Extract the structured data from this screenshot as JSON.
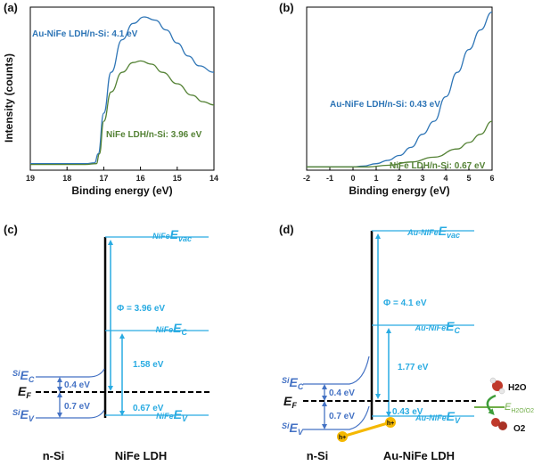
{
  "panels": {
    "a": "(a)",
    "b": "(b)",
    "c": "(c)",
    "d": "(d)"
  },
  "colors": {
    "blue_curve": "#2e75b6",
    "green_curve": "#548235",
    "cyan": "#29abe2",
    "si_blue": "#4472c4",
    "green_light": "#70ad47",
    "hole": "#f5b800",
    "molecule_red": "#c0392b"
  },
  "chart_data": [
    {
      "type": "line",
      "title": "",
      "xlabel": "Binding energy (eV)",
      "ylabel": "Intensity (counts)",
      "xlim": [
        19,
        14
      ],
      "x_reversed": true,
      "xticks": [
        19,
        18,
        17,
        16,
        15,
        14
      ],
      "series": [
        {
          "name": "Au-NiFe LDH/n-Si: 4.1 eV",
          "color": "#2e75b6",
          "points": [
            [
              19.0,
              0.04
            ],
            [
              17.5,
              0.04
            ],
            [
              17.25,
              0.045
            ],
            [
              17.15,
              0.1
            ],
            [
              17.0,
              0.35
            ],
            [
              16.8,
              0.6
            ],
            [
              16.5,
              0.8
            ],
            [
              16.2,
              0.9
            ],
            [
              15.9,
              0.94
            ],
            [
              15.6,
              0.92
            ],
            [
              15.3,
              0.86
            ],
            [
              15.0,
              0.78
            ],
            [
              14.7,
              0.7
            ],
            [
              14.4,
              0.64
            ],
            [
              14.0,
              0.6
            ]
          ]
        },
        {
          "name": "NiFe LDH/n-Si: 3.96 eV",
          "color": "#548235",
          "points": [
            [
              19.0,
              0.035
            ],
            [
              17.5,
              0.035
            ],
            [
              17.2,
              0.04
            ],
            [
              17.12,
              0.1
            ],
            [
              17.0,
              0.3
            ],
            [
              16.8,
              0.48
            ],
            [
              16.5,
              0.6
            ],
            [
              16.2,
              0.66
            ],
            [
              16.0,
              0.67
            ],
            [
              15.7,
              0.65
            ],
            [
              15.4,
              0.6
            ],
            [
              15.0,
              0.53
            ],
            [
              14.6,
              0.46
            ],
            [
              14.3,
              0.42
            ],
            [
              14.0,
              0.4
            ]
          ]
        }
      ]
    },
    {
      "type": "line",
      "title": "",
      "xlabel": "Binding energy (eV)",
      "ylabel": "",
      "xlim": [
        -2,
        6
      ],
      "xticks": [
        -2,
        -1,
        0,
        1,
        2,
        3,
        4,
        5,
        6
      ],
      "series": [
        {
          "name": "Au-NiFe LDH/n-Si: 0.43 eV",
          "color": "#2e75b6",
          "points": [
            [
              -2.0,
              0.02
            ],
            [
              0.0,
              0.02
            ],
            [
              0.43,
              0.025
            ],
            [
              1.0,
              0.04
            ],
            [
              1.5,
              0.06
            ],
            [
              2.0,
              0.09
            ],
            [
              2.5,
              0.14
            ],
            [
              3.0,
              0.22
            ],
            [
              3.5,
              0.3
            ],
            [
              4.0,
              0.45
            ],
            [
              4.5,
              0.6
            ],
            [
              5.0,
              0.74
            ],
            [
              5.5,
              0.86
            ],
            [
              6.0,
              0.97
            ]
          ]
        },
        {
          "name": "NiFe LDH/n-Si: 0.67 eV",
          "color": "#548235",
          "points": [
            [
              -2.0,
              0.02
            ],
            [
              0.67,
              0.02
            ],
            [
              1.5,
              0.03
            ],
            [
              2.5,
              0.05
            ],
            [
              3.5,
              0.08
            ],
            [
              4.5,
              0.13
            ],
            [
              5.0,
              0.17
            ],
            [
              5.5,
              0.22
            ],
            [
              6.0,
              0.3
            ]
          ]
        }
      ]
    }
  ],
  "diagram_c": {
    "levels": {
      "evac_pre": "NiFe",
      "evac_main": "E",
      "evac_sub": "vac",
      "ec_pre": "NiFe",
      "ec_main": "E",
      "ec_sub": "C",
      "ev_pre": "NiFe",
      "ev_main": "E",
      "ev_sub": "V",
      "si_ec_pre": "Si",
      "si_ec_main": "E",
      "si_ec_sub": "C",
      "si_ev_pre": "Si",
      "si_ev_main": "E",
      "si_ev_sub": "V",
      "ef_main": "E",
      "ef_sub": "F"
    },
    "values": {
      "phi": "Φ = 3.96 eV",
      "gap": "1.58 eV",
      "ev_offset": "0.67 eV",
      "si_ec": "0.4 eV",
      "si_ev": "0.7 eV"
    },
    "materials": {
      "left": "n-Si",
      "right": "NiFe LDH"
    }
  },
  "diagram_d": {
    "levels": {
      "evac_pre": "Au-NiFe",
      "evac_main": "E",
      "evac_sub": "vac",
      "ec_pre": "Au-NiFe",
      "ec_main": "E",
      "ec_sub": "C",
      "ev_pre": "Au-NiFe",
      "ev_main": "E",
      "ev_sub": "V",
      "si_ec_pre": "Si",
      "si_ec_main": "E",
      "si_ec_sub": "C",
      "si_ev_pre": "Si",
      "si_ev_main": "E",
      "si_ev_sub": "V",
      "ef_main": "E",
      "ef_sub": "F"
    },
    "values": {
      "phi": "Φ = 4.1 eV",
      "gap": "1.77 eV",
      "ev_offset": "0.43 eV",
      "si_ec": "0.4 eV",
      "si_ev": "0.7 eV"
    },
    "redox": {
      "main": "E",
      "sub": "H2O/O2"
    },
    "species": {
      "water": "H2O",
      "oxygen": "O2",
      "hole": "h+"
    },
    "materials": {
      "left": "n-Si",
      "right": "Au-NiFe LDH"
    }
  }
}
